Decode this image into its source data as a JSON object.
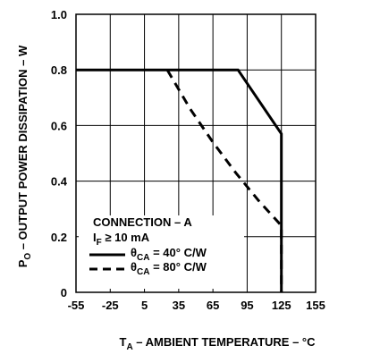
{
  "chart_data": {
    "type": "line",
    "xlabel_main": "T",
    "xlabel_sub": "A",
    "xlabel_rest": " – AMBIENT TEMPERATURE – °C",
    "ylabel_main": "P",
    "ylabel_sub": "O",
    "ylabel_rest": " – OUTPUT POWER DISSIPATION – W",
    "xlim": [
      -55,
      155
    ],
    "ylim": [
      0,
      1.0
    ],
    "x_ticks": [
      -55,
      -25,
      5,
      35,
      65,
      95,
      125,
      155
    ],
    "x_tick_labels": [
      "-55",
      "-25",
      "5",
      "35",
      "65",
      "95",
      "125",
      "155"
    ],
    "y_ticks": [
      0,
      0.2,
      0.4,
      0.6,
      0.8,
      1.0
    ],
    "y_tick_labels": [
      "0",
      "0.2",
      "0.4",
      "0.6",
      "0.8",
      "1.0"
    ],
    "grid": true,
    "series": [
      {
        "style": "solid",
        "legend_symbol": "θ",
        "legend_sub": "CA",
        "legend_rest": " = 40° C/W",
        "points": [
          [
            -55,
            0.8
          ],
          [
            87,
            0.8
          ],
          [
            125,
            0.57
          ],
          [
            125,
            0
          ]
        ]
      },
      {
        "style": "dashed",
        "legend_symbol": "θ",
        "legend_sub": "CA",
        "legend_rest": " = 80° C/W",
        "points": [
          [
            25,
            0.8
          ],
          [
            45,
            0.66
          ],
          [
            65,
            0.54
          ],
          [
            85,
            0.43
          ],
          [
            105,
            0.33
          ],
          [
            125,
            0.24
          ],
          [
            125,
            0
          ]
        ]
      }
    ],
    "legend": {
      "placement": "bottom-left",
      "title": "CONNECTION – A",
      "condition_main": "I",
      "condition_sub": "F",
      "condition_rest": " ≥ 10 mA"
    }
  }
}
